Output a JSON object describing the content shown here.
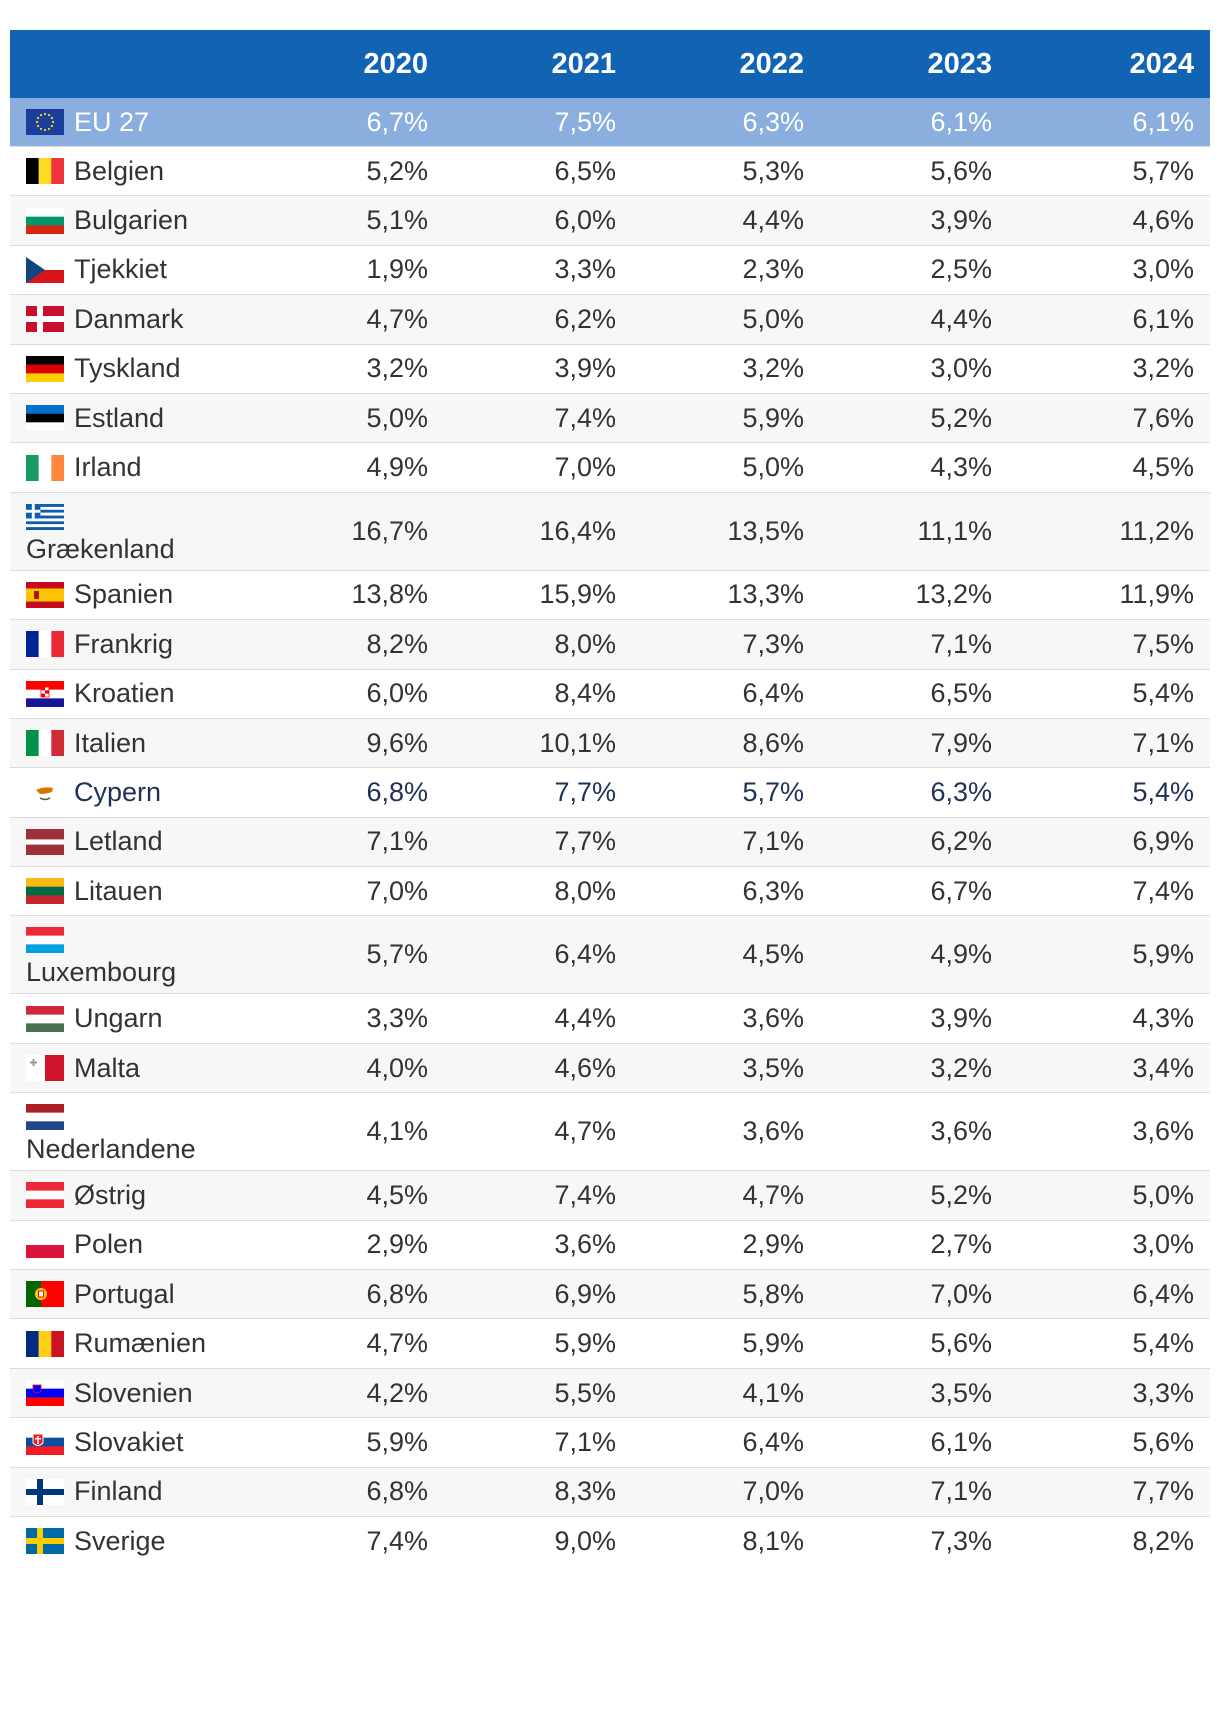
{
  "chart_data": {
    "type": "table",
    "columns": [
      "2020",
      "2021",
      "2022",
      "2023",
      "2024"
    ],
    "rows": [
      {
        "country": "EU 27",
        "flag": "eu-flag-icon",
        "values": [
          "6,7%",
          "7,5%",
          "6,3%",
          "6,1%",
          "6,1%"
        ]
      },
      {
        "country": "Belgien",
        "flag": "belgium-flag-icon",
        "values": [
          "5,2%",
          "6,5%",
          "5,3%",
          "5,6%",
          "5,7%"
        ]
      },
      {
        "country": "Bulgarien",
        "flag": "bulgaria-flag-icon",
        "values": [
          "5,1%",
          "6,0%",
          "4,4%",
          "3,9%",
          "4,6%"
        ]
      },
      {
        "country": "Tjekkiet",
        "flag": "czechia-flag-icon",
        "values": [
          "1,9%",
          "3,3%",
          "2,3%",
          "2,5%",
          "3,0%"
        ]
      },
      {
        "country": "Danmark",
        "flag": "denmark-flag-icon",
        "values": [
          "4,7%",
          "6,2%",
          "5,0%",
          "4,4%",
          "6,1%"
        ]
      },
      {
        "country": "Tyskland",
        "flag": "germany-flag-icon",
        "values": [
          "3,2%",
          "3,9%",
          "3,2%",
          "3,0%",
          "3,2%"
        ]
      },
      {
        "country": "Estland",
        "flag": "estonia-flag-icon",
        "values": [
          "5,0%",
          "7,4%",
          "5,9%",
          "5,2%",
          "7,6%"
        ]
      },
      {
        "country": "Irland",
        "flag": "ireland-flag-icon",
        "values": [
          "4,9%",
          "7,0%",
          "5,0%",
          "4,3%",
          "4,5%"
        ]
      },
      {
        "country": "Grækenland",
        "flag": "greece-flag-icon",
        "values": [
          "16,7%",
          "16,4%",
          "13,5%",
          "11,1%",
          "11,2%"
        ]
      },
      {
        "country": "Spanien",
        "flag": "spain-flag-icon",
        "values": [
          "13,8%",
          "15,9%",
          "13,3%",
          "13,2%",
          "11,9%"
        ]
      },
      {
        "country": "Frankrig",
        "flag": "france-flag-icon",
        "values": [
          "8,2%",
          "8,0%",
          "7,3%",
          "7,1%",
          "7,5%"
        ]
      },
      {
        "country": "Kroatien",
        "flag": "croatia-flag-icon",
        "values": [
          "6,0%",
          "8,4%",
          "6,4%",
          "6,5%",
          "5,4%"
        ]
      },
      {
        "country": "Italien",
        "flag": "italy-flag-icon",
        "values": [
          "9,6%",
          "10,1%",
          "8,6%",
          "7,9%",
          "7,1%"
        ]
      },
      {
        "country": "Cypern",
        "flag": "cyprus-flag-icon",
        "values": [
          "6,8%",
          "7,7%",
          "5,7%",
          "6,3%",
          "5,4%"
        ]
      },
      {
        "country": "Letland",
        "flag": "latvia-flag-icon",
        "values": [
          "7,1%",
          "7,7%",
          "7,1%",
          "6,2%",
          "6,9%"
        ]
      },
      {
        "country": "Litauen",
        "flag": "lithuania-flag-icon",
        "values": [
          "7,0%",
          "8,0%",
          "6,3%",
          "6,7%",
          "7,4%"
        ]
      },
      {
        "country": "Luxembourg",
        "flag": "luxembourg-flag-icon",
        "values": [
          "5,7%",
          "6,4%",
          "4,5%",
          "4,9%",
          "5,9%"
        ]
      },
      {
        "country": "Ungarn",
        "flag": "hungary-flag-icon",
        "values": [
          "3,3%",
          "4,4%",
          "3,6%",
          "3,9%",
          "4,3%"
        ]
      },
      {
        "country": "Malta",
        "flag": "malta-flag-icon",
        "values": [
          "4,0%",
          "4,6%",
          "3,5%",
          "3,2%",
          "3,4%"
        ]
      },
      {
        "country": "Nederlandene",
        "flag": "netherlands-flag-icon",
        "values": [
          "4,1%",
          "4,7%",
          "3,6%",
          "3,6%",
          "3,6%"
        ]
      },
      {
        "country": "Østrig",
        "flag": "austria-flag-icon",
        "values": [
          "4,5%",
          "7,4%",
          "4,7%",
          "5,2%",
          "5,0%"
        ]
      },
      {
        "country": "Polen",
        "flag": "poland-flag-icon",
        "values": [
          "2,9%",
          "3,6%",
          "2,9%",
          "2,7%",
          "3,0%"
        ]
      },
      {
        "country": "Portugal",
        "flag": "portugal-flag-icon",
        "values": [
          "6,8%",
          "6,9%",
          "5,8%",
          "7,0%",
          "6,4%"
        ]
      },
      {
        "country": "Rumænien",
        "flag": "romania-flag-icon",
        "values": [
          "4,7%",
          "5,9%",
          "5,9%",
          "5,6%",
          "5,4%"
        ]
      },
      {
        "country": "Slovenien",
        "flag": "slovenia-flag-icon",
        "values": [
          "4,2%",
          "5,5%",
          "4,1%",
          "3,5%",
          "3,3%"
        ]
      },
      {
        "country": "Slovakiet",
        "flag": "slovakia-flag-icon",
        "values": [
          "5,9%",
          "7,1%",
          "6,4%",
          "6,1%",
          "5,6%"
        ]
      },
      {
        "country": "Finland",
        "flag": "finland-flag-icon",
        "values": [
          "6,8%",
          "8,3%",
          "7,0%",
          "7,1%",
          "7,7%"
        ]
      },
      {
        "country": "Sverige",
        "flag": "sweden-flag-icon",
        "values": [
          "7,4%",
          "9,0%",
          "8,1%",
          "7,3%",
          "8,2%"
        ]
      }
    ]
  },
  "colors": {
    "header_bg": "#1164b4",
    "eu_row_bg": "#8aaede",
    "row_alt_bg": "#f7f7f7",
    "border": "#dcdcdc"
  }
}
